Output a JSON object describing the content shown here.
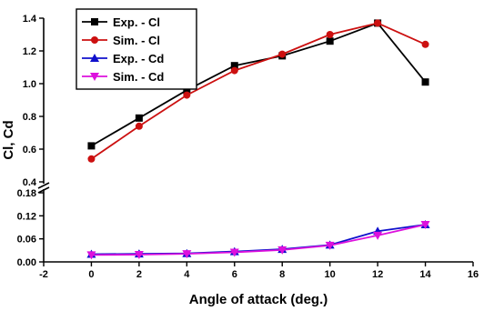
{
  "chart_data": {
    "type": "line",
    "xlabel": "Angle of attack (deg.)",
    "ylabel": "Cl, Cd",
    "xlim": [
      -2,
      16
    ],
    "x_ticks": [
      "-2",
      "0",
      "2",
      "4",
      "6",
      "8",
      "10",
      "12",
      "14",
      "16"
    ],
    "y_axis_break": true,
    "y_segments": [
      {
        "ylim": [
          0.4,
          1.4
        ],
        "ticks": [
          "0.4",
          "0.6",
          "0.8",
          "1.0",
          "1.2",
          "1.4"
        ]
      },
      {
        "ylim": [
          0.0,
          0.18
        ],
        "ticks": [
          "0.00",
          "0.06",
          "0.12",
          "0.18"
        ]
      }
    ],
    "grid": false,
    "legend_position": "top-left",
    "series": [
      {
        "name": "Exp. - Cl",
        "segment": 0,
        "color": "#000000",
        "marker": "square",
        "x": [
          0,
          2,
          4,
          6,
          8,
          10,
          12,
          14
        ],
        "y": [
          0.62,
          0.79,
          0.96,
          1.11,
          1.17,
          1.26,
          1.37,
          1.01
        ]
      },
      {
        "name": "Sim. - Cl",
        "segment": 0,
        "color": "#cc1010",
        "marker": "circle",
        "x": [
          0,
          2,
          4,
          6,
          8,
          10,
          12,
          14
        ],
        "y": [
          0.54,
          0.74,
          0.93,
          1.08,
          1.18,
          1.3,
          1.37,
          1.24
        ]
      },
      {
        "name": "Exp. - Cd",
        "segment": 1,
        "color": "#1010cc",
        "marker": "triangle-up",
        "x": [
          0,
          2,
          4,
          6,
          8,
          10,
          12,
          14
        ],
        "y": [
          0.02,
          0.021,
          0.022,
          0.027,
          0.033,
          0.044,
          0.08,
          0.097
        ]
      },
      {
        "name": "Sim.  - Cd",
        "segment": 1,
        "color": "#dd10dd",
        "marker": "triangle-down",
        "x": [
          0,
          2,
          4,
          6,
          8,
          10,
          12,
          14
        ],
        "y": [
          0.018,
          0.019,
          0.021,
          0.025,
          0.031,
          0.043,
          0.069,
          0.097
        ]
      }
    ]
  }
}
